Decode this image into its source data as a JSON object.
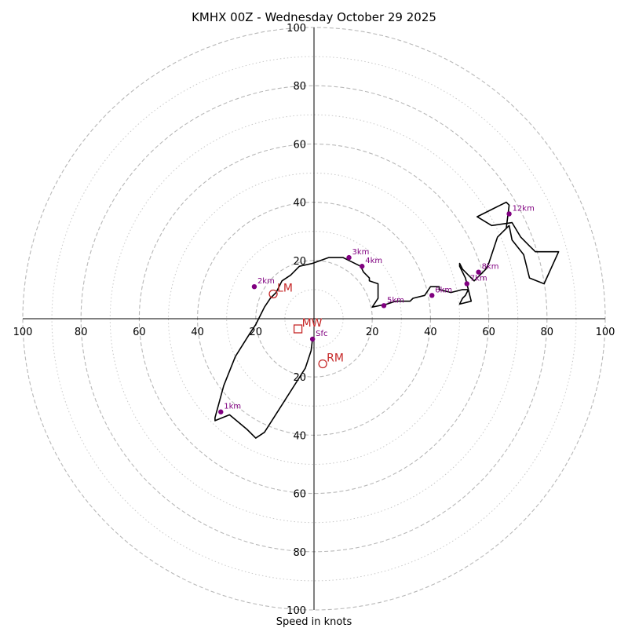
{
  "chart_data": {
    "type": "line",
    "title": "KMHX 00Z - Wednesday October 29 2025",
    "xlabel": "Speed in knots",
    "ylabel": "",
    "xlim": [
      -100,
      100
    ],
    "ylim": [
      -100,
      100
    ],
    "rings_major": [
      20,
      40,
      60,
      80,
      100
    ],
    "rings_minor": [
      10,
      30,
      50,
      70,
      90
    ],
    "tick_labels": [
      "100",
      "80",
      "60",
      "40",
      "20",
      "20",
      "40",
      "60",
      "80",
      "100"
    ],
    "tick_values": [
      -100,
      -80,
      -60,
      -40,
      -20,
      20,
      40,
      60,
      80,
      100
    ],
    "hodograph": {
      "u": [
        -0.5,
        -1,
        -3,
        -10,
        -17,
        -20,
        -23,
        -29,
        -34,
        -34,
        -31,
        -27,
        -22,
        -20,
        -18,
        -17,
        -15,
        -13,
        -11,
        -8,
        -5,
        -0.5,
        5,
        10,
        12,
        16,
        17,
        19,
        19,
        22,
        22,
        20,
        25,
        28,
        30,
        33,
        34,
        38,
        40,
        43,
        43,
        47,
        51,
        53,
        52,
        51,
        50,
        54,
        52,
        50,
        50,
        51,
        55,
        59,
        60,
        63,
        67,
        68,
        72,
        74,
        79,
        84,
        76,
        74,
        71,
        68,
        61,
        56,
        62,
        66,
        67,
        66
      ],
      "v": [
        -7,
        -11,
        -17,
        -28,
        -39,
        -41,
        -38,
        -33,
        -35,
        -34,
        -23,
        -13,
        -5,
        -2,
        2,
        4,
        7,
        9,
        13,
        15,
        18,
        19,
        21,
        21,
        20,
        18,
        16,
        14,
        13,
        12,
        7,
        4,
        5,
        6,
        6,
        6,
        7,
        8,
        11,
        11,
        10,
        9,
        10,
        10,
        8,
        7,
        5,
        6,
        14,
        18,
        19,
        17,
        13,
        17,
        19,
        28,
        32,
        27,
        22,
        14,
        12,
        23,
        23,
        25,
        28,
        33,
        32,
        35,
        38,
        40,
        39,
        31
      ]
    },
    "height_markers": [
      {
        "label": "Sfc",
        "u": -0.5,
        "v": -7
      },
      {
        "label": "1km",
        "u": -32,
        "v": -32
      },
      {
        "label": "2km",
        "u": -20.5,
        "v": 11
      },
      {
        "label": "3km",
        "u": 12,
        "v": 21
      },
      {
        "label": "4km",
        "u": 16.5,
        "v": 18
      },
      {
        "label": "5km",
        "u": 24,
        "v": 4.5
      },
      {
        "label": "6km",
        "u": 40.5,
        "v": 8
      },
      {
        "label": "7km",
        "u": 52.5,
        "v": 12
      },
      {
        "label": "8km",
        "u": 56.5,
        "v": 16
      },
      {
        "label": "12km",
        "u": 67,
        "v": 36
      }
    ],
    "motion_markers": [
      {
        "label": "LM",
        "u": -14,
        "v": 8.5,
        "shape": "circle"
      },
      {
        "label": "MW",
        "u": -5.5,
        "v": -3.5,
        "shape": "square"
      },
      {
        "label": "RM",
        "u": 3,
        "v": -15.5,
        "shape": "circle"
      }
    ],
    "colors": {
      "trace": "#000000",
      "height_marker": "#800080",
      "motion_marker": "#c62828",
      "grid_major": "#b8b8b8",
      "grid_minor": "#c8c8c8"
    }
  }
}
